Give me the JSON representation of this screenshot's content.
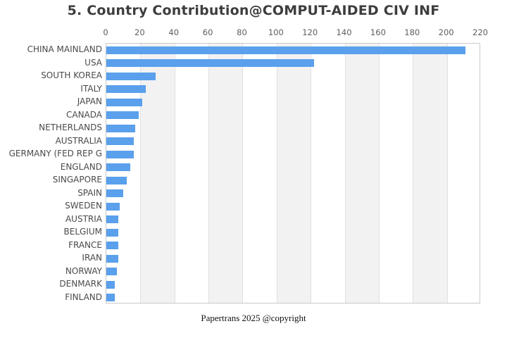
{
  "footer": {
    "text": "Papertrans 2025 @copyright"
  },
  "chart_data": {
    "type": "bar",
    "orientation": "horizontal",
    "title": "5. Country Contribution@COMPUT-AIDED CIV INF",
    "categories": [
      "CHINA MAINLAND",
      "USA",
      "SOUTH KOREA",
      "ITALY",
      "JAPAN",
      "CANADA",
      "NETHERLANDS",
      "AUSTRALIA",
      "GERMANY (FED REP G",
      "ENGLAND",
      "SINGAPORE",
      "SPAIN",
      "SWEDEN",
      "AUSTRIA",
      "BELGIUM",
      "FRANCE",
      "IRAN",
      "NORWAY",
      "DENMARK",
      "FINLAND"
    ],
    "values": [
      211,
      122,
      29,
      23,
      21,
      19,
      17,
      16,
      16,
      14,
      12,
      10,
      8,
      7,
      7,
      7,
      7,
      6,
      5,
      5
    ],
    "xlabel": "",
    "ylabel": "",
    "xlim": [
      0,
      220
    ],
    "x_ticks": [
      0,
      20,
      40,
      60,
      80,
      100,
      120,
      140,
      160,
      180,
      200,
      220
    ],
    "tick_position": "top",
    "grid": true,
    "alternating_bands": true,
    "legend": "none",
    "colors": {
      "bar": "#5aa0ec",
      "band": "#f2f2f2",
      "gridline": "#e0e0e0",
      "plot_border": "#c9c9c9",
      "title_text": "#3d3d3d",
      "label_text": "#4a4a4a",
      "tick_text": "#5e5e5e",
      "footer_text": "#111111",
      "background": "#ffffff"
    }
  }
}
